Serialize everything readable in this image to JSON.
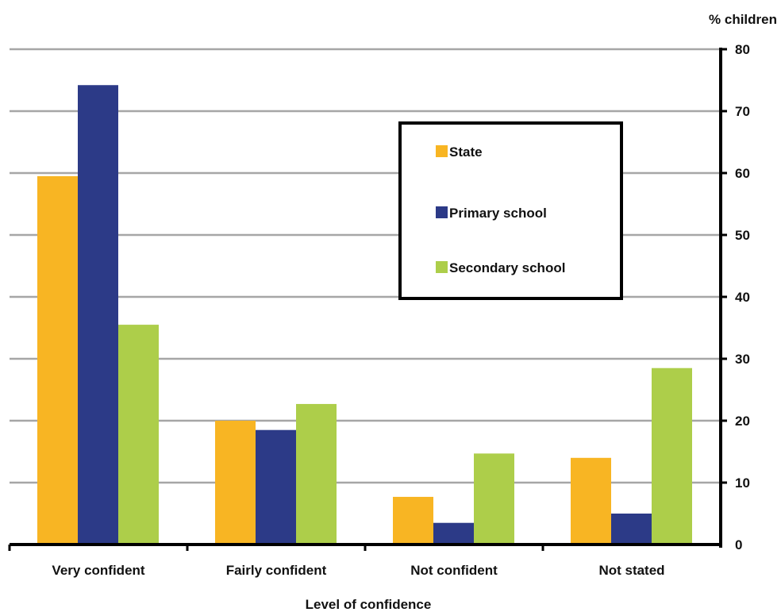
{
  "chart_data": {
    "type": "bar",
    "categories": [
      "Very confident",
      "Fairly confident",
      "Not confident",
      "Not stated"
    ],
    "series": [
      {
        "name": "State",
        "values": [
          59.5,
          20,
          7.7,
          14
        ],
        "color": "#F8B523"
      },
      {
        "name": "Primary school",
        "values": [
          74.2,
          18.5,
          3.5,
          5
        ],
        "color": "#2C3A87"
      },
      {
        "name": "Secondary school",
        "values": [
          35.5,
          22.7,
          14.7,
          28.5
        ],
        "color": "#ADCE4A"
      }
    ],
    "title": "",
    "xlabel": "Level of confidence",
    "ylabel": "% children",
    "ylim": [
      0,
      80
    ],
    "yticks": [
      "0",
      "10",
      "20",
      "30",
      "40",
      "50",
      "60",
      "70",
      "80"
    ],
    "y_axis_side": "right",
    "grid": true,
    "gridline_color": "#a6a6a6",
    "legend_position": "center-right"
  }
}
